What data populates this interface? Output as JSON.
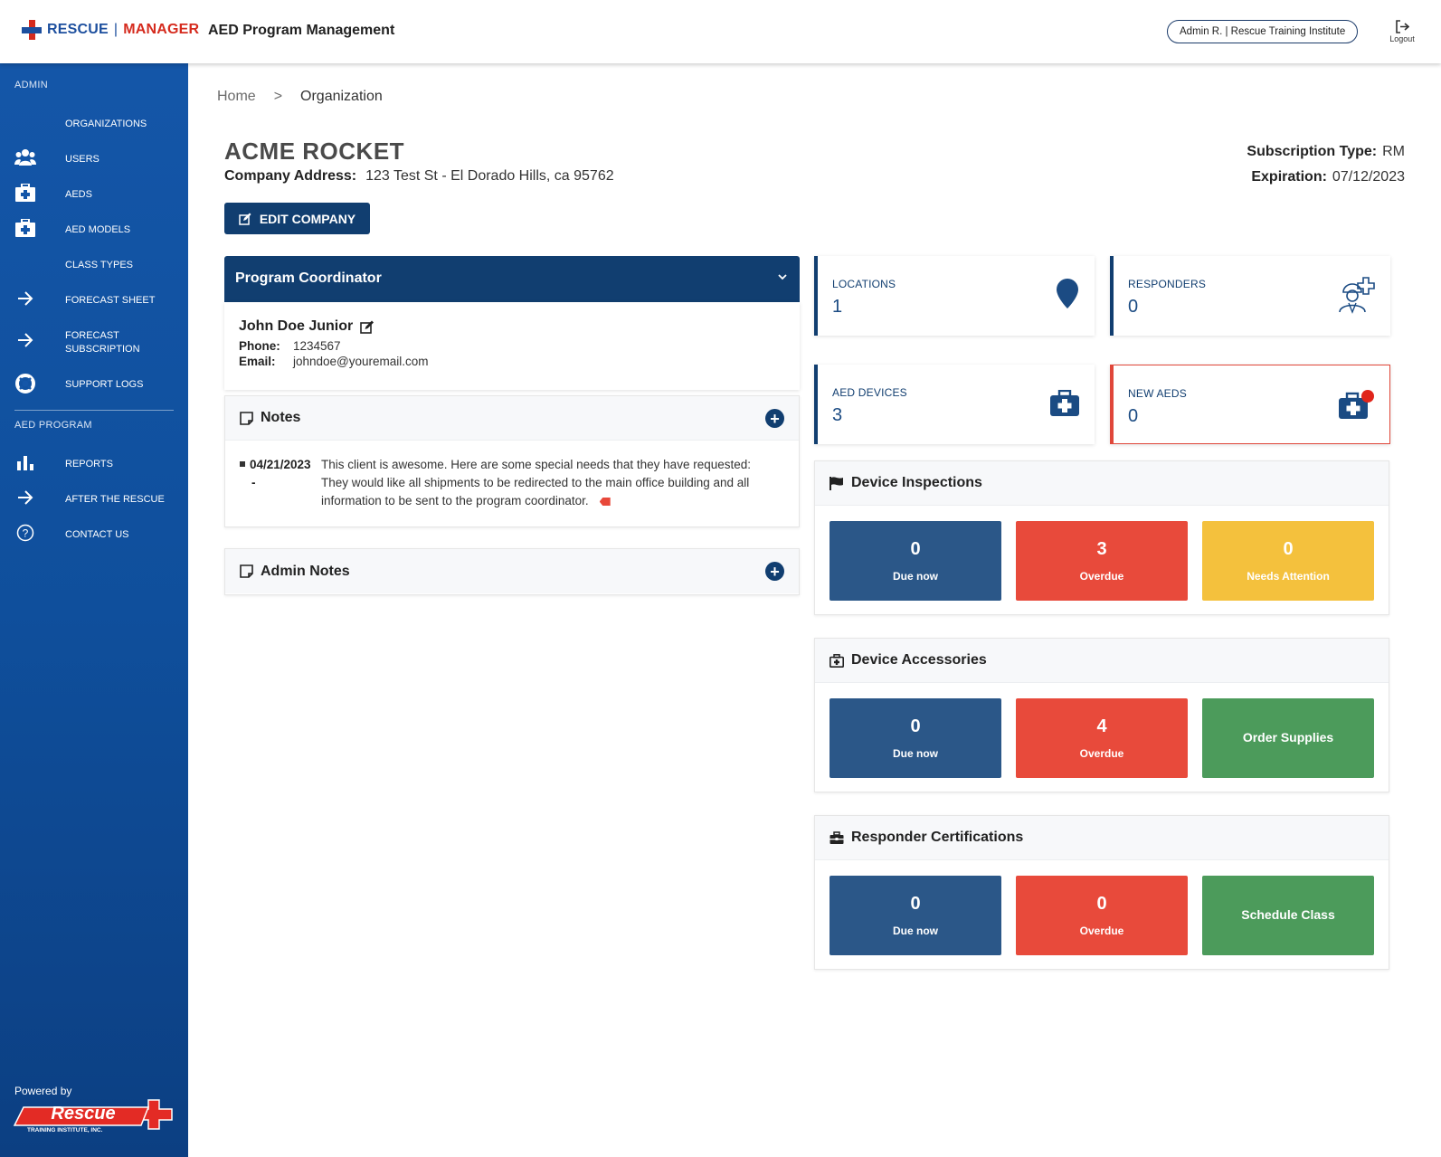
{
  "header": {
    "logo_word1": "RESCUE",
    "logo_sep": "|",
    "logo_word2": "MANAGER",
    "app_title": "AED Program Management",
    "user_label": "Admin R. | Rescue Training Institute",
    "logout_label": "Logout"
  },
  "sidebar": {
    "admin_section": "ADMIN",
    "admin_items": [
      {
        "label": "ORGANIZATIONS",
        "icon": "none"
      },
      {
        "label": "USERS",
        "icon": "users-icon"
      },
      {
        "label": "AEDS",
        "icon": "medkit-icon"
      },
      {
        "label": "AED MODELS",
        "icon": "medkit-icon"
      },
      {
        "label": "CLASS TYPES",
        "icon": "none"
      },
      {
        "label": "FORECAST SHEET",
        "icon": "arrow-right-icon"
      },
      {
        "label": "FORECAST SUBSCRIPTION",
        "icon": "arrow-right-icon"
      },
      {
        "label": "SUPPORT LOGS",
        "icon": "lifebuoy-icon"
      }
    ],
    "program_section": "AED PROGRAM",
    "program_items": [
      {
        "label": "REPORTS",
        "icon": "bar-chart-icon"
      },
      {
        "label": "AFTER THE RESCUE",
        "icon": "arrow-right-icon"
      },
      {
        "label": "CONTACT US",
        "icon": "question-circle-icon"
      }
    ],
    "powered_by": "Powered by",
    "footer_logo_text": "Rescue",
    "footer_logo_sub": "TRAINING INSTITUTE, INC."
  },
  "breadcrumb": {
    "home": "Home",
    "separator": ">",
    "current": "Organization"
  },
  "company": {
    "name": "ACME ROCKET",
    "address_label": "Company Address:",
    "address": "123 Test St - El Dorado Hills, ca 95762",
    "subscription_label": "Subscription Type:",
    "subscription": "RM",
    "expiration_label": "Expiration:",
    "expiration": "07/12/2023",
    "edit_label": "EDIT COMPANY"
  },
  "coordinator": {
    "title": "Program Coordinator",
    "name": "John Doe Junior",
    "phone_label": "Phone:",
    "phone": "1234567",
    "email_label": "Email:",
    "email": "johndoe@youremail.com"
  },
  "notes": {
    "title": "Notes",
    "entries": [
      {
        "date": "04/21/2023",
        "dash": "-",
        "text": "This client is awesome. Here are some special needs that they have requested: They would like all shipments to be redirected to the main office building and all information to be sent to the program coordinator."
      }
    ]
  },
  "admin_notes": {
    "title": "Admin Notes"
  },
  "stats": {
    "locations": {
      "label": "LOCATIONS",
      "value": "1",
      "icon": "map-pin-icon"
    },
    "responders": {
      "label": "RESPONDERS",
      "value": "0",
      "icon": "responder-icon"
    },
    "aed_devices": {
      "label": "AED DEVICES",
      "value": "3",
      "icon": "medkit-icon"
    },
    "new_aeds": {
      "label": "NEW AEDS",
      "value": "0",
      "icon": "medkit-new-icon"
    }
  },
  "device_inspections": {
    "title": "Device Inspections",
    "due_now": {
      "value": "0",
      "label": "Due now"
    },
    "overdue": {
      "value": "3",
      "label": "Overdue"
    },
    "needs_attention": {
      "value": "0",
      "label": "Needs Attention"
    }
  },
  "device_accessories": {
    "title": "Device Accessories",
    "due_now": {
      "value": "0",
      "label": "Due now"
    },
    "overdue": {
      "value": "4",
      "label": "Overdue"
    },
    "action": "Order Supplies"
  },
  "responder_certifications": {
    "title": "Responder Certifications",
    "due_now": {
      "value": "0",
      "label": "Due now"
    },
    "overdue": {
      "value": "0",
      "label": "Overdue"
    },
    "action": "Schedule Class"
  },
  "colors": {
    "primary": "#113e70",
    "sidebar": "#1456a8",
    "tile_blue": "#2b5788",
    "tile_red": "#e84a3b",
    "tile_yellow": "#f4c13d",
    "tile_green": "#4c9b5b",
    "brand_red": "#d52b1e"
  }
}
